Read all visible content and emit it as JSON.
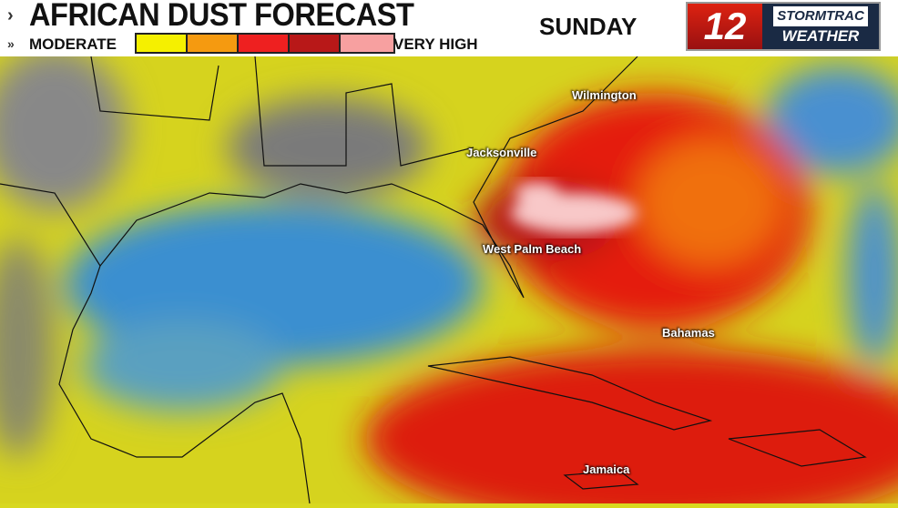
{
  "header": {
    "title": "AFRICAN DUST FORECAST",
    "day": "SUNDAY",
    "scale_low": "MODERATE",
    "scale_high": "VERY HIGH",
    "scale_colors": [
      "#f5f000",
      "#f59a10",
      "#ee2020",
      "#b81818",
      "#f7a0a0"
    ]
  },
  "logo": {
    "channel": "12",
    "line1": "STORMTRAC",
    "line2": "WEATHER"
  },
  "map": {
    "cities": [
      "Wilmington",
      "Jacksonville",
      "West Palm Beach",
      "Bahamas",
      "Jamaica"
    ]
  }
}
